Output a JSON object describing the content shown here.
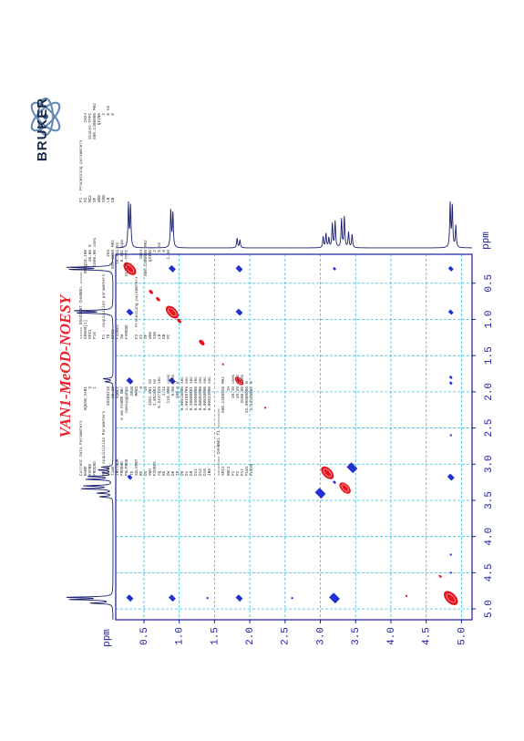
{
  "page": {
    "experiment_title": "VAN1-MeOD-NOESY",
    "axis_unit": "ppm",
    "logo_text": "BRUKER"
  },
  "parameters": {
    "col1": [
      {
        "t": "s",
        "text": "Current Data Parameters"
      },
      {
        "t": "r",
        "k": "NAME",
        "v": "SQUAN_VAN1",
        "u": ""
      },
      {
        "t": "r",
        "k": "EXPNO",
        "v": "3",
        "u": ""
      },
      {
        "t": "r",
        "k": "PROCNO",
        "v": "1",
        "u": ""
      },
      {
        "t": "b"
      },
      {
        "t": "s",
        "text": "F2 - Acquisition Parameters"
      },
      {
        "t": "r",
        "k": "Date_",
        "v": "20200218",
        "u": ""
      },
      {
        "t": "r",
        "k": "Time",
        "v": "15.28",
        "u": ""
      },
      {
        "t": "r",
        "k": "INSTRUM",
        "v": "spect",
        "u": ""
      },
      {
        "t": "r",
        "k": "PROBHD",
        "v": "5 mm PABBO BB/",
        "u": ""
      },
      {
        "t": "r",
        "k": "PULPROG",
        "v": "noesygpphpp",
        "u": ""
      },
      {
        "t": "r",
        "k": "TD",
        "v": "2048",
        "u": ""
      },
      {
        "t": "r",
        "k": "SOLVENT",
        "v": "MeOD",
        "u": ""
      },
      {
        "t": "r",
        "k": "NS",
        "v": "8",
        "u": ""
      },
      {
        "t": "r",
        "k": "DS",
        "v": "16",
        "u": ""
      },
      {
        "t": "r",
        "k": "SWH",
        "v": "4201.681",
        "u": "Hz"
      },
      {
        "t": "r",
        "k": "FIDRES",
        "v": "2.051602",
        "u": "Hz"
      },
      {
        "t": "r",
        "k": "AQ",
        "v": "0.2437120",
        "u": "sec"
      },
      {
        "t": "r",
        "k": "RG",
        "v": "4.42",
        "u": ""
      },
      {
        "t": "r",
        "k": "DW",
        "v": "119.000",
        "u": "usec"
      },
      {
        "t": "r",
        "k": "DE",
        "v": "6.50",
        "u": "usec"
      },
      {
        "t": "r",
        "k": "TE",
        "v": "300.0",
        "u": "K"
      },
      {
        "t": "r",
        "k": "D0",
        "v": "0.00015800",
        "u": "sec"
      },
      {
        "t": "r",
        "k": "D1",
        "v": "1.96109796",
        "u": "sec"
      },
      {
        "t": "r",
        "k": "D8",
        "v": "0.30000001",
        "u": "sec"
      },
      {
        "t": "r",
        "k": "D11",
        "v": "0.03000000",
        "u": "sec"
      },
      {
        "t": "r",
        "k": "D12",
        "v": "0.00002000",
        "u": "sec"
      },
      {
        "t": "r",
        "k": "D16",
        "v": "0.00020000",
        "u": "sec"
      },
      {
        "t": "r",
        "k": "IN0",
        "v": "0.00023800",
        "u": "sec"
      },
      {
        "t": "b"
      },
      {
        "t": "s",
        "text": "======== CHANNEL f1 ========"
      },
      {
        "t": "r",
        "k": "SFO1",
        "v": "500.1308926",
        "u": "MHz"
      },
      {
        "t": "r",
        "k": "NUC1",
        "v": "1H",
        "u": ""
      },
      {
        "t": "r",
        "k": "P1",
        "v": "10.10",
        "u": "usec"
      },
      {
        "t": "r",
        "k": "P2",
        "v": "20.20",
        "u": "usec"
      },
      {
        "t": "r",
        "k": "P17",
        "v": "2500.00",
        "u": "usec"
      },
      {
        "t": "r",
        "k": "PLW1",
        "v": "22.00000000",
        "u": "W"
      },
      {
        "t": "r",
        "k": "PLW10",
        "v": "2.54320002",
        "u": "W"
      }
    ],
    "col2": [
      {
        "t": "s",
        "text": "===== GRADIENT CHANNEL ====="
      },
      {
        "t": "r",
        "k": "GPNAM[1]",
        "v": "SMSQ10.100",
        "u": ""
      },
      {
        "t": "r",
        "k": "GPZ1",
        "v": "40.00",
        "u": "%"
      },
      {
        "t": "r",
        "k": "P16",
        "v": "1000.00",
        "u": "usec"
      },
      {
        "t": "b"
      },
      {
        "t": "s",
        "text": "F1 - Acquisition parameters"
      },
      {
        "t": "r",
        "k": "TD",
        "v": "256",
        "u": ""
      },
      {
        "t": "r",
        "k": "SFO1",
        "v": "500.1308",
        "u": "MHz"
      },
      {
        "t": "r",
        "k": "FIDRES",
        "v": "16.413",
        "u": "Hz"
      },
      {
        "t": "r",
        "k": "SW",
        "v": "8.401",
        "u": "ppm"
      },
      {
        "t": "r",
        "k": "FnMODE",
        "v": "States-TPPI",
        "u": ""
      },
      {
        "t": "b"
      },
      {
        "t": "s",
        "text": "F2 - Processing parameters"
      },
      {
        "t": "r",
        "k": "SI",
        "v": "1024",
        "u": ""
      },
      {
        "t": "r",
        "k": "SF",
        "v": "500.1300000",
        "u": "MHz"
      },
      {
        "t": "r",
        "k": "WDW",
        "v": "QSINE",
        "u": ""
      },
      {
        "t": "r",
        "k": "SSB",
        "v": "2",
        "u": ""
      },
      {
        "t": "r",
        "k": "LB",
        "v": "0",
        "u": "Hz"
      },
      {
        "t": "r",
        "k": "GB",
        "v": "0",
        "u": ""
      },
      {
        "t": "r",
        "k": "PC",
        "v": "1.00",
        "u": ""
      }
    ],
    "col3": [
      {
        "t": "s",
        "text": "F1 - Processing parameters"
      },
      {
        "t": "r",
        "k": "SI",
        "v": "1024",
        "u": ""
      },
      {
        "t": "r",
        "k": "MC2",
        "v": "States-TPPI",
        "u": ""
      },
      {
        "t": "r",
        "k": "SF",
        "v": "500.1300000",
        "u": "MHz"
      },
      {
        "t": "r",
        "k": "WDW",
        "v": "QSINE",
        "u": ""
      },
      {
        "t": "r",
        "k": "SSB",
        "v": "2",
        "u": ""
      },
      {
        "t": "r",
        "k": "LB",
        "v": "0",
        "u": "Hz"
      },
      {
        "t": "r",
        "k": "GB",
        "v": "0",
        "u": ""
      }
    ]
  },
  "chart_data": {
    "type": "scatter",
    "subtype": "2D NMR NOESY contour plot",
    "title": "VAN1-MeOD-NOESY",
    "xlabel": "ppm",
    "ylabel": "ppm",
    "xlim": [
      0.1,
      5.15
    ],
    "ylim": [
      0.1,
      5.15
    ],
    "ticks": [
      0.5,
      1.0,
      1.5,
      2.0,
      2.5,
      3.0,
      3.5,
      4.0,
      4.5,
      5.0
    ],
    "tick_labels": [
      "0.5",
      "1.0",
      "1.5",
      "2.0",
      "2.5",
      "3.0",
      "3.5",
      "4.0",
      "4.5",
      "5.0"
    ],
    "grid": true,
    "colors": {
      "positive": "#1f2fd0",
      "negative": "#e8141c",
      "grid": "#37bfe0",
      "frame": "#1a1aa0",
      "trace": "#1a2070",
      "tick_text": "#1a1aa0"
    },
    "proj_peaks": [
      {
        "ppm": 0.28,
        "h": 1.0
      },
      {
        "ppm": 0.31,
        "h": 0.95
      },
      {
        "ppm": 0.88,
        "h": 0.85
      },
      {
        "ppm": 0.91,
        "h": 0.8
      },
      {
        "ppm": 1.82,
        "h": 0.22
      },
      {
        "ppm": 1.86,
        "h": 0.18
      },
      {
        "ppm": 3.04,
        "h": 0.25
      },
      {
        "ppm": 3.08,
        "h": 0.32
      },
      {
        "ppm": 3.12,
        "h": 0.22
      },
      {
        "ppm": 3.17,
        "h": 0.55
      },
      {
        "ppm": 3.21,
        "h": 0.6
      },
      {
        "ppm": 3.3,
        "h": 0.65
      },
      {
        "ppm": 3.34,
        "h": 0.7
      },
      {
        "ppm": 3.4,
        "h": 0.35
      },
      {
        "ppm": 3.45,
        "h": 0.3
      },
      {
        "ppm": 4.84,
        "h": 1.0
      },
      {
        "ppm": 4.87,
        "h": 0.95
      },
      {
        "ppm": 4.92,
        "h": 0.5
      }
    ],
    "peaks": [
      {
        "x": 0.3,
        "y": 0.3,
        "s": "neg",
        "size": 9
      },
      {
        "x": 0.9,
        "y": 0.9,
        "s": "neg",
        "size": 9
      },
      {
        "x": 0.6,
        "y": 0.62,
        "s": "neg",
        "size": 3
      },
      {
        "x": 0.7,
        "y": 0.72,
        "s": "neg",
        "size": 3
      },
      {
        "x": 1.0,
        "y": 1.02,
        "s": "neg",
        "size": 3
      },
      {
        "x": 1.32,
        "y": 1.32,
        "s": "neg",
        "size": 4
      },
      {
        "x": 1.62,
        "y": 1.62,
        "s": "neg",
        "size": 1
      },
      {
        "x": 1.85,
        "y": 1.85,
        "s": "neg",
        "size": 6
      },
      {
        "x": 2.22,
        "y": 2.22,
        "s": "neg",
        "size": 1
      },
      {
        "x": 3.1,
        "y": 3.12,
        "s": "neg",
        "size": 9
      },
      {
        "x": 3.35,
        "y": 3.33,
        "s": "neg",
        "size": 8
      },
      {
        "x": 4.85,
        "y": 4.85,
        "s": "neg",
        "size": 10
      },
      {
        "x": 4.7,
        "y": 4.55,
        "s": "neg",
        "size": 2
      },
      {
        "x": 4.22,
        "y": 4.82,
        "s": "neg",
        "size": 1
      },
      {
        "x": 0.9,
        "y": 0.3,
        "s": "pos",
        "size": 4
      },
      {
        "x": 1.85,
        "y": 0.3,
        "s": "pos",
        "size": 4
      },
      {
        "x": 3.2,
        "y": 0.3,
        "s": "pos",
        "size": 2
      },
      {
        "x": 4.85,
        "y": 0.3,
        "s": "pos",
        "size": 3
      },
      {
        "x": 0.3,
        "y": 0.9,
        "s": "pos",
        "size": 4
      },
      {
        "x": 1.85,
        "y": 0.9,
        "s": "pos",
        "size": 4
      },
      {
        "x": 4.85,
        "y": 0.9,
        "s": "pos",
        "size": 3
      },
      {
        "x": 0.3,
        "y": 1.85,
        "s": "pos",
        "size": 4
      },
      {
        "x": 0.9,
        "y": 1.85,
        "s": "pos",
        "size": 4
      },
      {
        "x": 4.85,
        "y": 1.8,
        "s": "pos",
        "size": 2
      },
      {
        "x": 4.85,
        "y": 1.88,
        "s": "pos",
        "size": 2
      },
      {
        "x": 4.85,
        "y": 2.6,
        "s": "pos",
        "size": 1
      },
      {
        "x": 0.3,
        "y": 3.18,
        "s": "pos",
        "size": 3
      },
      {
        "x": 3.0,
        "y": 3.4,
        "s": "pos",
        "size": 6
      },
      {
        "x": 3.45,
        "y": 3.05,
        "s": "pos",
        "size": 6
      },
      {
        "x": 3.2,
        "y": 3.25,
        "s": "pos",
        "size": 2
      },
      {
        "x": 4.85,
        "y": 3.18,
        "s": "pos",
        "size": 4
      },
      {
        "x": 0.3,
        "y": 4.85,
        "s": "pos",
        "size": 4
      },
      {
        "x": 0.9,
        "y": 4.85,
        "s": "pos",
        "size": 4
      },
      {
        "x": 1.85,
        "y": 4.85,
        "s": "pos",
        "size": 4
      },
      {
        "x": 3.2,
        "y": 4.85,
        "s": "pos",
        "size": 6
      },
      {
        "x": 1.4,
        "y": 4.85,
        "s": "pos",
        "size": 1
      },
      {
        "x": 2.6,
        "y": 4.85,
        "s": "pos",
        "size": 1
      },
      {
        "x": 4.85,
        "y": 4.25,
        "s": "pos",
        "size": 1
      },
      {
        "x": 4.85,
        "y": 4.5,
        "s": "pos",
        "size": 1
      }
    ]
  }
}
